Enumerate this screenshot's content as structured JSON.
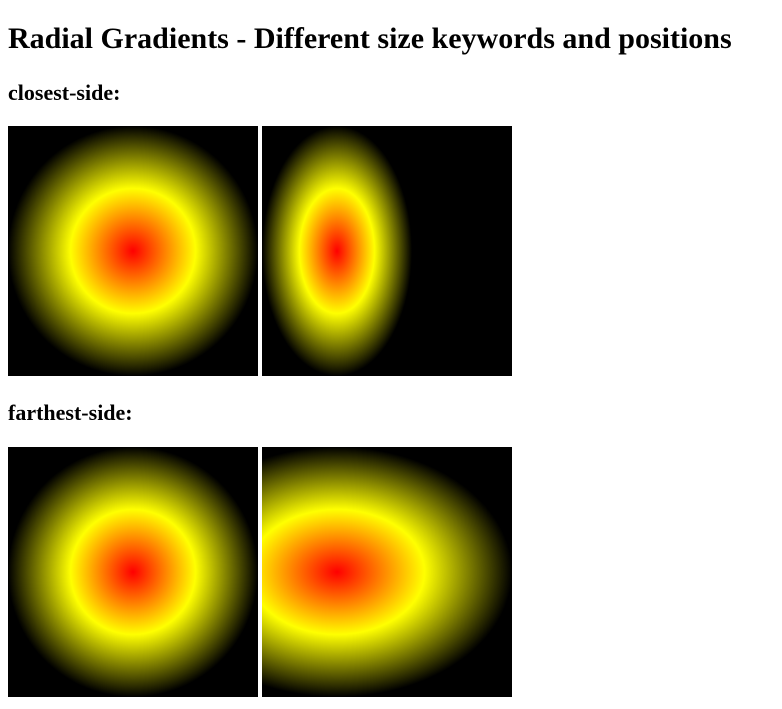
{
  "page": {
    "title": "Radial Gradients - Different size keywords and positions"
  },
  "sections": [
    {
      "heading": "closest-side:",
      "swatches": [
        {
          "shape": "circle",
          "size": "closest-side",
          "position": "center"
        },
        {
          "shape": "ellipse",
          "size": "closest-side",
          "position": "30% 50%"
        }
      ]
    },
    {
      "heading": "farthest-side:",
      "swatches": [
        {
          "shape": "circle",
          "size": "farthest-side",
          "position": "center"
        },
        {
          "shape": "ellipse",
          "size": "farthest-side",
          "position": "30% 50%"
        }
      ]
    }
  ],
  "colors": {
    "gradient_center": "#ff0000",
    "gradient_mid": "#ffff00",
    "gradient_edge": "#000000",
    "page_background": "#ffffff"
  }
}
